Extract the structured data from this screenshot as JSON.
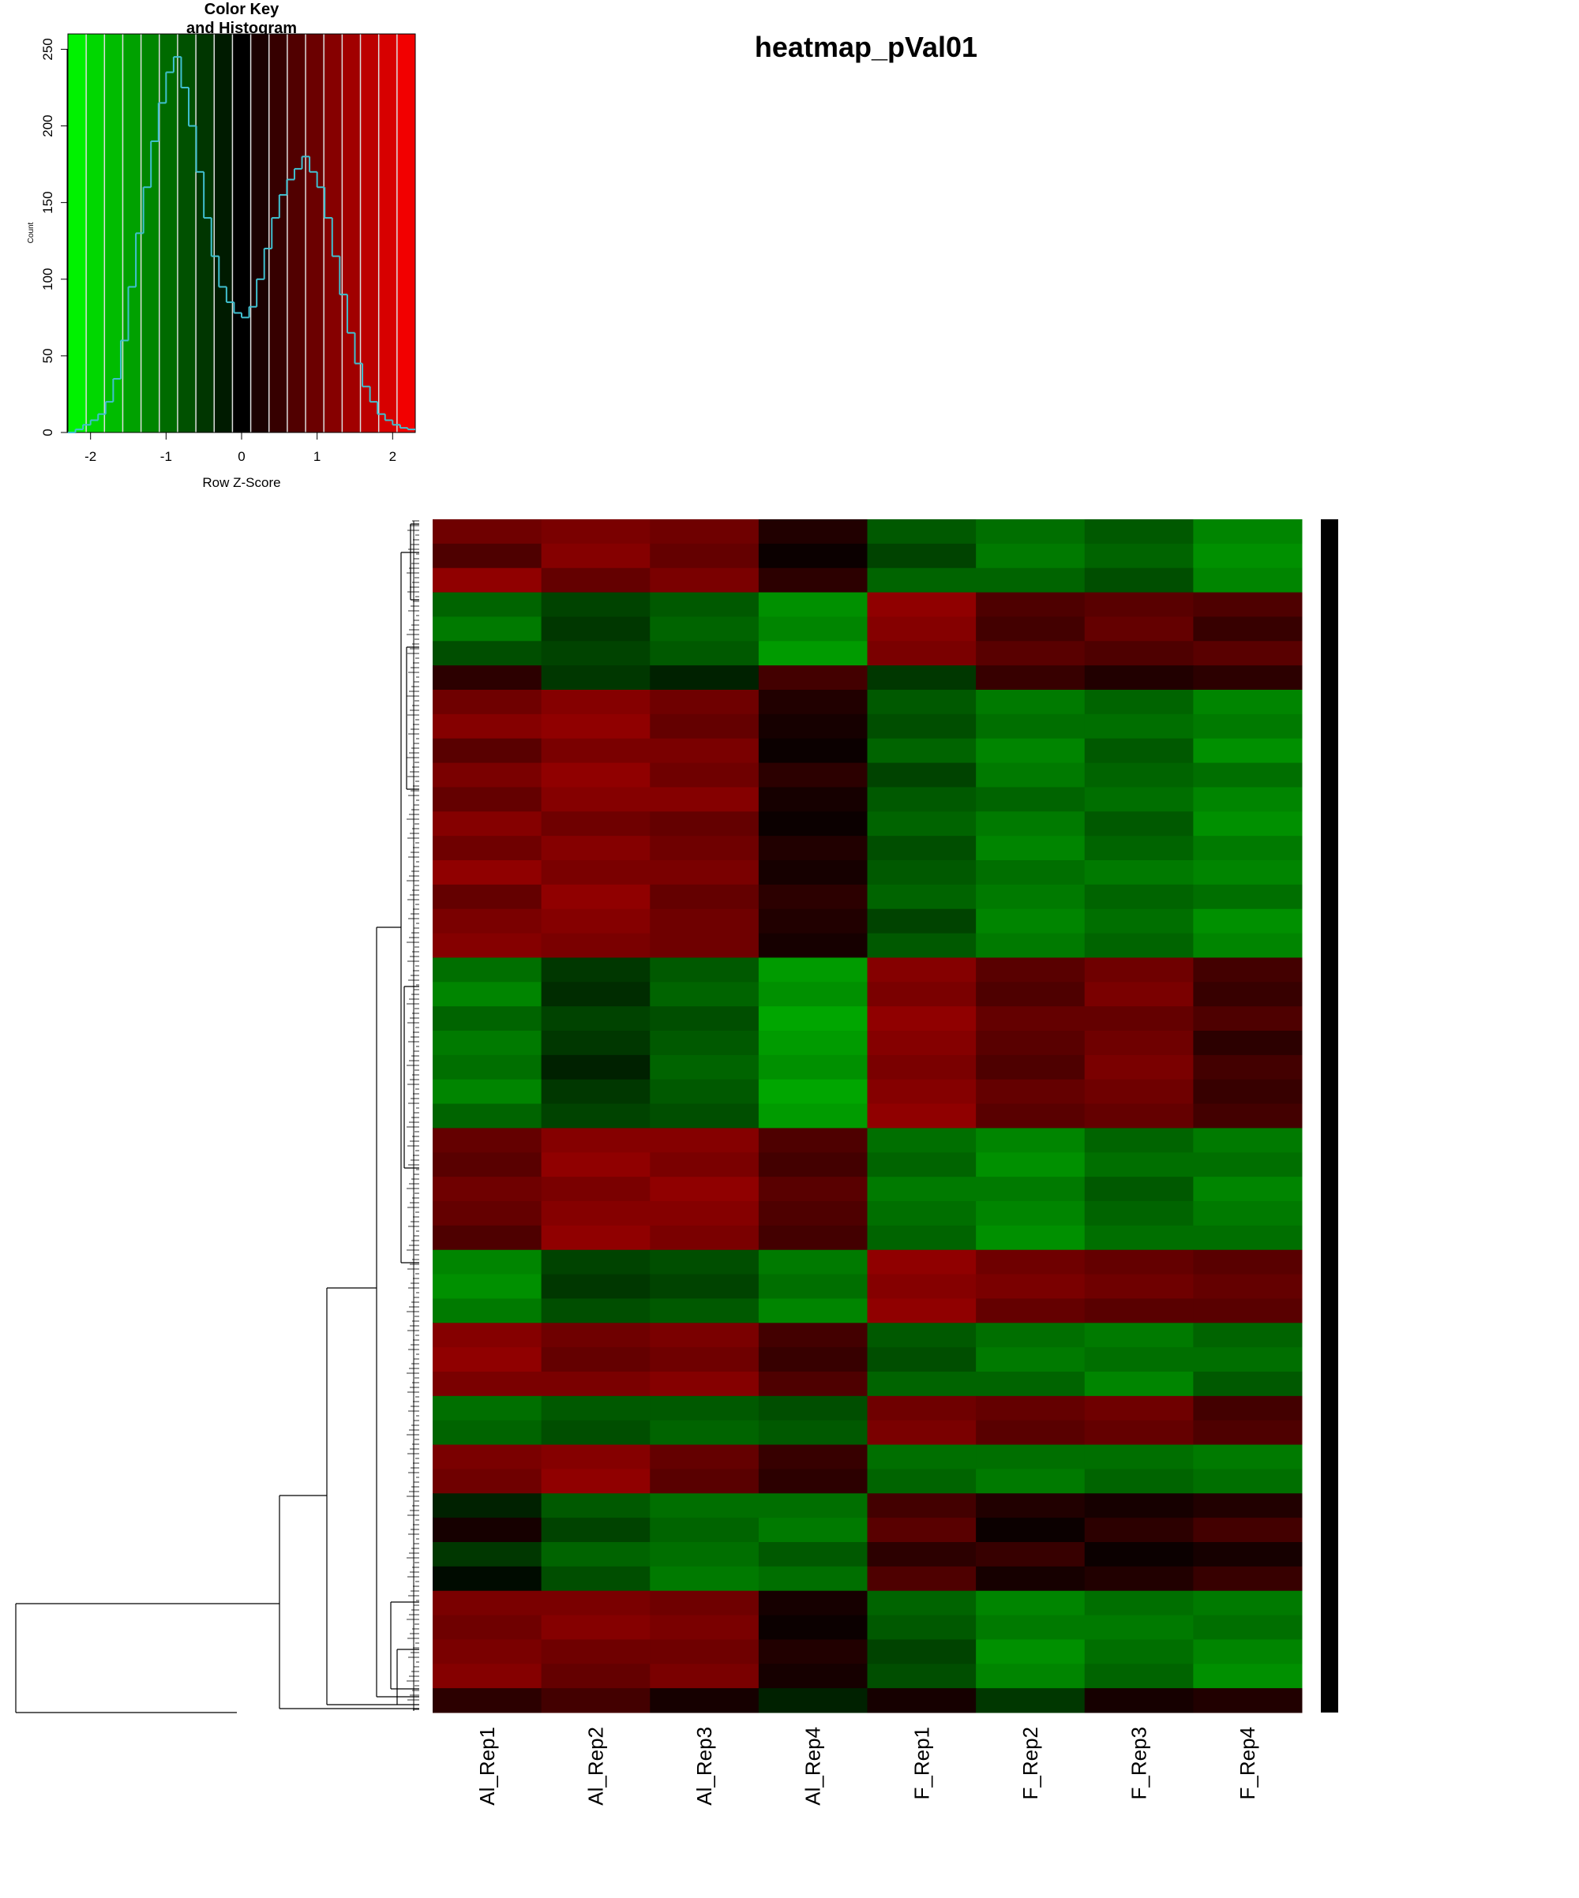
{
  "chart_data": [
    {
      "type": "histogram",
      "title": [
        "Color Key",
        "and Histogram"
      ],
      "x_label": "Row Z-Score",
      "y_label": "Count",
      "bins": [
        -2.3,
        -2.2,
        -2.1,
        -2.0,
        -1.9,
        -1.8,
        -1.7,
        -1.6,
        -1.5,
        -1.4,
        -1.3,
        -1.2,
        -1.1,
        -1.0,
        -0.9,
        -0.8,
        -0.7,
        -0.6,
        -0.5,
        -0.4,
        -0.3,
        -0.2,
        -0.1,
        0,
        0.1,
        0.2,
        0.3,
        0.4,
        0.5,
        0.6,
        0.7,
        0.8,
        0.9,
        1.0,
        1.1,
        1.2,
        1.3,
        1.4,
        1.5,
        1.6,
        1.7,
        1.8,
        1.9,
        2.0,
        2.1,
        2.2,
        2.3
      ],
      "values": [
        0,
        2,
        5,
        8,
        12,
        20,
        35,
        60,
        95,
        130,
        160,
        190,
        215,
        235,
        245,
        225,
        200,
        170,
        140,
        115,
        95,
        85,
        78,
        75,
        82,
        100,
        120,
        140,
        155,
        165,
        172,
        180,
        170,
        160,
        140,
        115,
        90,
        65,
        45,
        30,
        20,
        12,
        8,
        5,
        3,
        2
      ],
      "color": "#40c0d0",
      "colors": [
        "#00ff00",
        "#000000",
        "#ff0000"
      ],
      "xlim": [
        -2.3,
        2.3
      ],
      "ylim": [
        0,
        260
      ],
      "xticks": [
        -2,
        -1,
        0,
        1,
        2
      ],
      "yticks": [
        0,
        50,
        100,
        150,
        200,
        250
      ]
    },
    {
      "type": "heatmap",
      "title": "heatmap_pVal01",
      "columns": [
        "Al_Rep1",
        "Al_Rep2",
        "Al_Rep3",
        "Al_Rep4",
        "F_Rep1",
        "F_Rep2",
        "F_Rep3",
        "F_Rep4"
      ],
      "values": [
        [
          1.0,
          1.1,
          1.0,
          0.3,
          -0.8,
          -1.0,
          -0.8,
          -1.2
        ],
        [
          0.7,
          1.2,
          0.9,
          0.1,
          -0.6,
          -1.1,
          -0.9,
          -1.3
        ],
        [
          1.3,
          0.9,
          1.1,
          0.4,
          -0.9,
          -0.9,
          -0.7,
          -1.2
        ],
        [
          -0.9,
          -0.6,
          -0.8,
          -1.3,
          1.3,
          0.7,
          0.8,
          0.7
        ],
        [
          -1.1,
          -0.5,
          -0.9,
          -1.2,
          1.2,
          0.6,
          0.9,
          0.5
        ],
        [
          -0.7,
          -0.6,
          -0.8,
          -1.4,
          1.1,
          0.8,
          0.7,
          0.8
        ],
        [
          0.4,
          -0.5,
          -0.3,
          0.6,
          -0.5,
          0.5,
          0.3,
          0.4
        ],
        [
          1.0,
          1.2,
          1.0,
          0.3,
          -0.8,
          -1.1,
          -0.9,
          -1.2
        ],
        [
          1.2,
          1.3,
          0.9,
          0.2,
          -0.7,
          -1.0,
          -1.0,
          -1.1
        ],
        [
          0.8,
          1.1,
          1.1,
          0.1,
          -0.9,
          -1.2,
          -0.8,
          -1.3
        ],
        [
          1.1,
          1.3,
          1.0,
          0.4,
          -0.6,
          -1.1,
          -0.9,
          -1.0
        ],
        [
          0.9,
          1.2,
          1.2,
          0.2,
          -0.8,
          -0.9,
          -1.0,
          -1.2
        ],
        [
          1.2,
          1.0,
          0.9,
          0.1,
          -0.9,
          -1.1,
          -0.8,
          -1.3
        ],
        [
          1.0,
          1.2,
          1.0,
          0.3,
          -0.7,
          -1.2,
          -0.9,
          -1.1
        ],
        [
          1.3,
          1.1,
          1.1,
          0.2,
          -0.8,
          -1.0,
          -1.1,
          -1.2
        ],
        [
          0.9,
          1.3,
          0.9,
          0.4,
          -0.9,
          -1.1,
          -0.9,
          -1.0
        ],
        [
          1.1,
          1.2,
          1.0,
          0.3,
          -0.6,
          -1.2,
          -1.0,
          -1.3
        ],
        [
          1.2,
          1.1,
          1.0,
          0.2,
          -0.8,
          -1.1,
          -0.9,
          -1.2
        ],
        [
          -1.0,
          -0.5,
          -0.8,
          -1.4,
          1.2,
          0.8,
          1.0,
          0.6
        ],
        [
          -1.2,
          -0.4,
          -0.9,
          -1.3,
          1.1,
          0.7,
          1.1,
          0.5
        ],
        [
          -0.9,
          -0.6,
          -0.7,
          -1.5,
          1.3,
          0.9,
          0.9,
          0.7
        ],
        [
          -1.1,
          -0.5,
          -0.8,
          -1.4,
          1.2,
          0.8,
          1.0,
          0.4
        ],
        [
          -1.0,
          -0.3,
          -0.9,
          -1.3,
          1.1,
          0.7,
          1.1,
          0.6
        ],
        [
          -1.2,
          -0.5,
          -0.8,
          -1.5,
          1.2,
          0.9,
          1.0,
          0.5
        ],
        [
          -0.9,
          -0.6,
          -0.7,
          -1.4,
          1.3,
          0.8,
          0.9,
          0.6
        ],
        [
          0.9,
          1.2,
          1.2,
          0.7,
          -1.0,
          -1.2,
          -0.9,
          -1.1
        ],
        [
          0.8,
          1.3,
          1.1,
          0.6,
          -0.9,
          -1.3,
          -1.0,
          -1.0
        ],
        [
          1.0,
          1.1,
          1.3,
          0.8,
          -1.1,
          -1.1,
          -0.8,
          -1.2
        ],
        [
          0.9,
          1.2,
          1.2,
          0.7,
          -1.0,
          -1.2,
          -0.9,
          -1.1
        ],
        [
          0.7,
          1.3,
          1.1,
          0.6,
          -0.9,
          -1.3,
          -1.0,
          -1.0
        ],
        [
          -1.2,
          -0.6,
          -0.7,
          -1.1,
          1.3,
          1.0,
          0.9,
          0.8
        ],
        [
          -1.3,
          -0.5,
          -0.6,
          -1.0,
          1.2,
          1.1,
          1.0,
          0.9
        ],
        [
          -1.1,
          -0.7,
          -0.8,
          -1.2,
          1.3,
          0.9,
          0.8,
          0.8
        ],
        [
          1.2,
          1.0,
          1.1,
          0.6,
          -0.8,
          -1.0,
          -1.1,
          -0.9
        ],
        [
          1.3,
          0.9,
          1.0,
          0.5,
          -0.7,
          -1.1,
          -1.0,
          -1.0
        ],
        [
          1.1,
          1.1,
          1.2,
          0.7,
          -0.9,
          -0.9,
          -1.2,
          -0.8
        ],
        [
          -1.0,
          -0.8,
          -0.8,
          -0.7,
          1.0,
          0.9,
          1.0,
          0.6
        ],
        [
          -0.9,
          -0.7,
          -0.9,
          -0.8,
          1.1,
          0.8,
          0.9,
          0.7
        ],
        [
          1.1,
          1.2,
          0.9,
          0.5,
          -1.0,
          -1.0,
          -1.0,
          -1.1
        ],
        [
          1.0,
          1.3,
          0.8,
          0.4,
          -0.9,
          -1.1,
          -0.9,
          -1.0
        ],
        [
          -0.3,
          -0.8,
          -1.0,
          -1.0,
          0.6,
          0.3,
          0.2,
          0.3
        ],
        [
          0.2,
          -0.6,
          -0.9,
          -1.1,
          0.8,
          0.1,
          0.4,
          0.6
        ],
        [
          -0.5,
          -0.9,
          -1.0,
          -0.8,
          0.4,
          0.5,
          0.1,
          0.2
        ],
        [
          -0.1,
          -0.7,
          -1.1,
          -1.0,
          0.7,
          0.2,
          0.3,
          0.5
        ],
        [
          1.1,
          1.1,
          1.0,
          0.2,
          -0.9,
          -1.2,
          -1.0,
          -1.1
        ],
        [
          1.0,
          1.2,
          1.1,
          0.1,
          -0.8,
          -1.1,
          -1.1,
          -1.0
        ],
        [
          1.1,
          1.0,
          1.0,
          0.3,
          -0.6,
          -1.3,
          -1.0,
          -1.2
        ],
        [
          1.2,
          0.9,
          1.1,
          0.2,
          -0.7,
          -1.2,
          -0.9,
          -1.3
        ],
        [
          0.4,
          0.6,
          0.2,
          -0.3,
          0.2,
          -0.5,
          0.2,
          0.3
        ]
      ]
    }
  ]
}
